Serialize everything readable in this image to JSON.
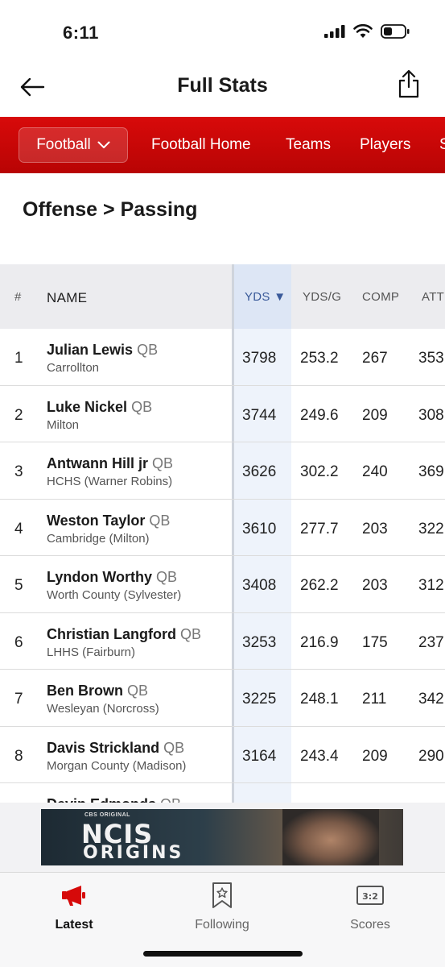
{
  "status_bar": {
    "time": "6:11"
  },
  "header": {
    "title": "Full Stats"
  },
  "nav": {
    "sport": "Football",
    "links": [
      "Football Home",
      "Teams",
      "Players",
      "S"
    ]
  },
  "section": {
    "title": "Offense > Passing"
  },
  "table": {
    "columns": {
      "rank": "#",
      "name": "NAME",
      "yds": "YDS ▼",
      "yds_g": "YDS/G",
      "comp": "COMP",
      "att": "ATT"
    },
    "rows": [
      {
        "rank": "1",
        "name": "Julian Lewis",
        "pos": "QB",
        "school": "Carrollton",
        "yds": "3798",
        "yds_g": "253.2",
        "comp": "267",
        "att": "353"
      },
      {
        "rank": "2",
        "name": "Luke Nickel",
        "pos": "QB",
        "school": "Milton",
        "yds": "3744",
        "yds_g": "249.6",
        "comp": "209",
        "att": "308"
      },
      {
        "rank": "3",
        "name": "Antwann Hill jr",
        "pos": "QB",
        "school": "HCHS (Warner Robins)",
        "yds": "3626",
        "yds_g": "302.2",
        "comp": "240",
        "att": "369"
      },
      {
        "rank": "4",
        "name": "Weston Taylor",
        "pos": "QB",
        "school": "Cambridge (Milton)",
        "yds": "3610",
        "yds_g": "277.7",
        "comp": "203",
        "att": "322"
      },
      {
        "rank": "5",
        "name": "Lyndon Worthy",
        "pos": "QB",
        "school": "Worth County (Sylvester)",
        "yds": "3408",
        "yds_g": "262.2",
        "comp": "203",
        "att": "312"
      },
      {
        "rank": "6",
        "name": "Christian Langford",
        "pos": "QB",
        "school": "LHHS (Fairburn)",
        "yds": "3253",
        "yds_g": "216.9",
        "comp": "175",
        "att": "237"
      },
      {
        "rank": "7",
        "name": "Ben Brown",
        "pos": "QB",
        "school": "Wesleyan (Norcross)",
        "yds": "3225",
        "yds_g": "248.1",
        "comp": "211",
        "att": "342"
      },
      {
        "rank": "8",
        "name": "Davis Strickland",
        "pos": "QB",
        "school": "Morgan County (Madison)",
        "yds": "3164",
        "yds_g": "243.4",
        "comp": "209",
        "att": "290"
      },
      {
        "rank": "",
        "name": "Devin Edmonds",
        "pos": "QB",
        "school": "",
        "yds": "",
        "yds_g": "",
        "comp": "",
        "att": ""
      }
    ]
  },
  "ad": {
    "small": "CBS ORIGINAL",
    "line1": "NCIS",
    "line2": "ORIGINS"
  },
  "tabs": [
    {
      "label": "Latest",
      "icon": "megaphone-icon",
      "active": true
    },
    {
      "label": "Following",
      "icon": "bookmark-star-icon",
      "active": false
    },
    {
      "label": "Scores",
      "icon": "scoreboard-icon",
      "active": false
    }
  ],
  "colors": {
    "accent": "#c90808",
    "yds_highlight": "#dde6f5"
  }
}
